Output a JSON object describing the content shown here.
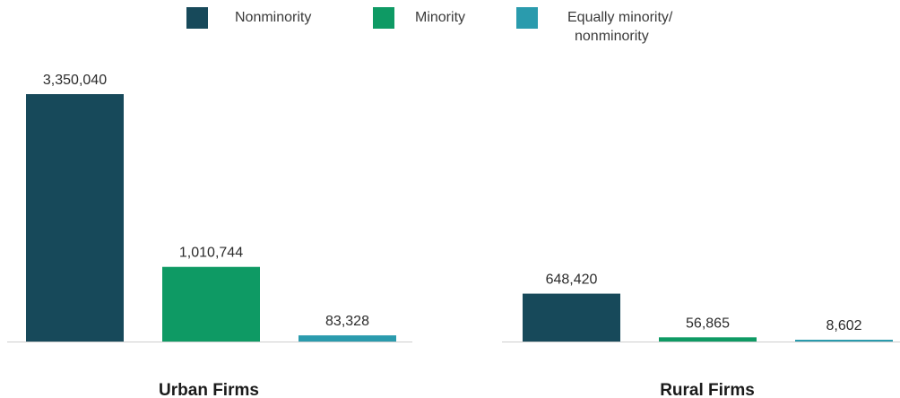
{
  "chart_data": {
    "type": "bar",
    "title": "",
    "xlabel": "",
    "ylabel": "",
    "categories": [
      "Urban Firms",
      "Rural Firms"
    ],
    "series": [
      {
        "name": "Nonminority",
        "values": [
          3350040,
          648420
        ],
        "labels": [
          "3,350,040",
          "648,420"
        ],
        "color": "#17495a"
      },
      {
        "name": "Minority",
        "values": [
          1010744,
          56865
        ],
        "labels": [
          "1,010,744",
          "56,865"
        ],
        "color": "#0e9a64"
      },
      {
        "name": "Equally minority/nonminority",
        "name_lines": [
          "Equally minority/",
          "nonminority"
        ],
        "values": [
          83328,
          8602
        ],
        "labels": [
          "83,328",
          "8,602"
        ],
        "color": "#2a9bad"
      }
    ],
    "ylim": [
      0,
      3350040
    ],
    "grid": false,
    "legend": "top-center"
  }
}
